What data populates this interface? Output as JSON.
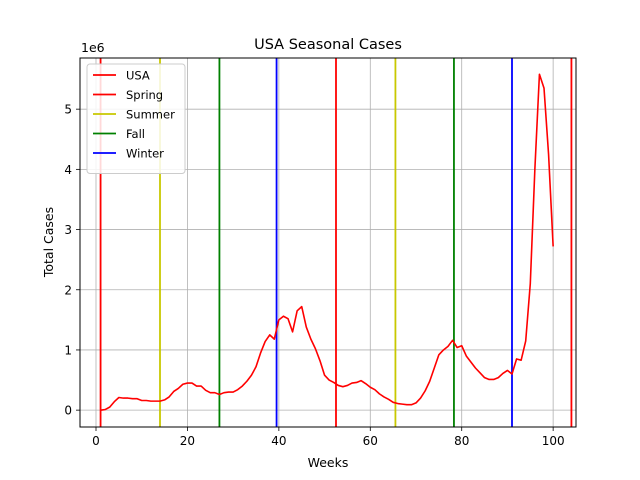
{
  "chart_data": {
    "type": "line",
    "title": "USA Seasonal Cases",
    "xlabel": "Weeks",
    "ylabel": "Total Cases",
    "y_offset_label": "1e6",
    "xlim": [
      -3.5,
      105
    ],
    "ylim": [
      -0.28,
      5.85
    ],
    "x_ticks": [
      0,
      20,
      40,
      60,
      80,
      100
    ],
    "x_tick_labels": [
      "0",
      "20",
      "40",
      "60",
      "80",
      "100"
    ],
    "y_ticks": [
      0,
      1,
      2,
      3,
      4,
      5
    ],
    "y_tick_labels": [
      "0",
      "1",
      "2",
      "3",
      "4",
      "5"
    ],
    "grid": true,
    "legend_position": "top-left",
    "series": [
      {
        "name": "USA",
        "color": "#ff0000",
        "unit_multiplier": 1000000,
        "x": [
          1,
          2,
          3,
          4,
          5,
          6,
          7,
          8,
          9,
          10,
          11,
          12,
          13,
          14,
          15,
          16,
          17,
          18,
          19,
          20,
          21,
          22,
          23,
          24,
          25,
          26,
          27,
          28,
          29,
          30,
          31,
          32,
          33,
          34,
          35,
          36,
          37,
          38,
          39,
          40,
          41,
          42,
          43,
          44,
          45,
          46,
          47,
          48,
          49,
          50,
          51,
          52,
          53,
          54,
          55,
          56,
          57,
          58,
          59,
          60,
          61,
          62,
          63,
          64,
          65,
          66,
          67,
          68,
          69,
          70,
          71,
          72,
          73,
          74,
          75,
          76,
          77,
          78,
          79,
          80,
          81,
          82,
          83,
          84,
          85,
          86,
          87,
          88,
          89,
          90,
          91,
          92,
          93,
          94,
          95,
          96,
          97,
          98,
          99,
          100
        ],
        "y": [
          0.0,
          0.01,
          0.05,
          0.14,
          0.21,
          0.2,
          0.2,
          0.19,
          0.19,
          0.16,
          0.16,
          0.15,
          0.15,
          0.15,
          0.17,
          0.22,
          0.31,
          0.36,
          0.43,
          0.45,
          0.45,
          0.4,
          0.4,
          0.33,
          0.29,
          0.29,
          0.26,
          0.29,
          0.3,
          0.3,
          0.34,
          0.4,
          0.48,
          0.58,
          0.72,
          0.95,
          1.14,
          1.25,
          1.18,
          1.5,
          1.56,
          1.52,
          1.3,
          1.65,
          1.72,
          1.38,
          1.18,
          1.02,
          0.82,
          0.58,
          0.5,
          0.46,
          0.41,
          0.39,
          0.41,
          0.45,
          0.46,
          0.49,
          0.44,
          0.38,
          0.34,
          0.27,
          0.22,
          0.18,
          0.13,
          0.11,
          0.1,
          0.09,
          0.09,
          0.12,
          0.2,
          0.32,
          0.48,
          0.7,
          0.92,
          1.0,
          1.06,
          1.16,
          1.04,
          1.07,
          0.9,
          0.8,
          0.7,
          0.62,
          0.54,
          0.51,
          0.51,
          0.54,
          0.61,
          0.66,
          0.6,
          0.85,
          0.83,
          1.15,
          2.1,
          4.0,
          5.58,
          5.35,
          4.25,
          2.72
        ]
      }
    ],
    "season_lines": [
      {
        "name": "Spring",
        "color": "#ff0000",
        "x": [
          1,
          52.5,
          104
        ]
      },
      {
        "name": "Summer",
        "color": "#c8c800",
        "x": [
          14,
          65.5
        ]
      },
      {
        "name": "Fall",
        "color": "#008000",
        "x": [
          27,
          78.3
        ]
      },
      {
        "name": "Winter",
        "color": "#0000ff",
        "x": [
          39.5,
          91
        ]
      }
    ],
    "legend": [
      {
        "label": "USA",
        "color": "#ff0000"
      },
      {
        "label": "Spring",
        "color": "#ff0000"
      },
      {
        "label": "Summer",
        "color": "#c8c800"
      },
      {
        "label": "Fall",
        "color": "#008000"
      },
      {
        "label": "Winter",
        "color": "#0000ff"
      }
    ]
  }
}
